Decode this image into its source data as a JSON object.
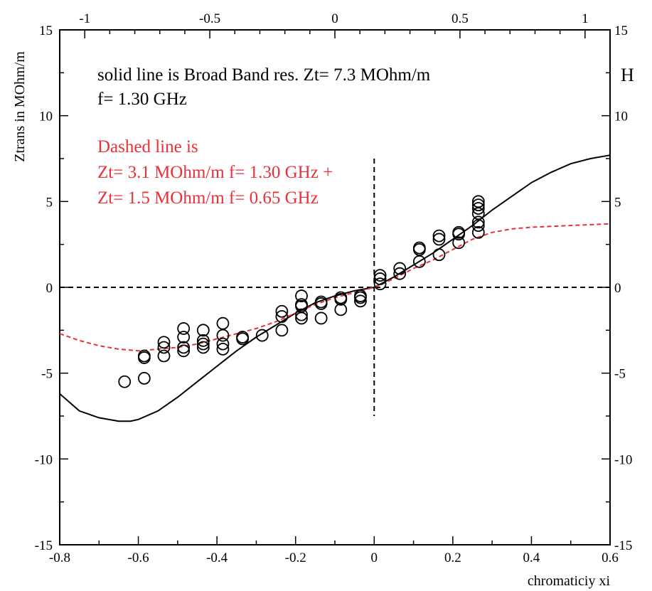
{
  "chart_data": {
    "type": "scatter",
    "title": "",
    "xlabel": "chromaticiy xi",
    "ylabel": "Ztrans in MOhm/m",
    "right_axis_label": "H",
    "xlim": [
      -0.8,
      0.6
    ],
    "ylim": [
      -15,
      15
    ],
    "top_xlim": [
      -1.1,
      1.1
    ],
    "x_ticks": [
      "-0.8",
      "-0.6",
      "-0.4",
      "-0.2",
      "0",
      "0.2",
      "0.4",
      "0.6"
    ],
    "top_x_ticks": [
      "-1",
      "-0.5",
      "0",
      "0.5",
      "1"
    ],
    "y_ticks": [
      "-15",
      "-10",
      "-5",
      "0",
      "5",
      "10",
      "15"
    ],
    "annotations": {
      "solid_line": "solid line is Broad Band res. Zt=   7.3 MOhm/m",
      "freq": "f= 1.30 GHz",
      "dashed_title": "Dashed line is",
      "dashed_line1": "Zt=   3.1 MOhm/m f= 1.30 GHz +",
      "dashed_line2": "Zt=   1.5 MOhm/m f= 0.65 GHz"
    },
    "colors": {
      "solid": "#000000",
      "dashed": "#e8323a",
      "markers": "#000000"
    },
    "grid": false,
    "series": [
      {
        "style": "solid",
        "x": [
          -0.8,
          -0.75,
          -0.7,
          -0.65,
          -0.62,
          -0.6,
          -0.55,
          -0.5,
          -0.45,
          -0.4,
          -0.35,
          -0.3,
          -0.25,
          -0.2,
          -0.15,
          -0.1,
          -0.05,
          0.0,
          0.05,
          0.1,
          0.15,
          0.2,
          0.25,
          0.3,
          0.35,
          0.4,
          0.45,
          0.5,
          0.55,
          0.6
        ],
        "y": [
          -6.2,
          -7.2,
          -7.6,
          -7.8,
          -7.8,
          -7.7,
          -7.2,
          -6.4,
          -5.5,
          -4.6,
          -3.7,
          -2.9,
          -2.2,
          -1.5,
          -0.9,
          -0.5,
          -0.2,
          0.0,
          0.6,
          1.3,
          2.0,
          2.8,
          3.6,
          4.5,
          5.3,
          6.1,
          6.7,
          7.2,
          7.5,
          7.7
        ]
      },
      {
        "style": "dashed",
        "x": [
          -0.8,
          -0.75,
          -0.7,
          -0.65,
          -0.6,
          -0.55,
          -0.5,
          -0.45,
          -0.4,
          -0.35,
          -0.3,
          -0.25,
          -0.2,
          -0.15,
          -0.1,
          -0.05,
          0.0,
          0.05,
          0.1,
          0.15,
          0.2,
          0.25,
          0.3,
          0.35,
          0.4,
          0.45,
          0.5,
          0.55,
          0.6
        ],
        "y": [
          -2.7,
          -3.1,
          -3.4,
          -3.6,
          -3.7,
          -3.6,
          -3.5,
          -3.3,
          -3.0,
          -2.7,
          -2.4,
          -2.0,
          -1.5,
          -1.0,
          -0.6,
          -0.3,
          0.0,
          0.5,
          1.1,
          1.6,
          2.2,
          2.8,
          3.2,
          3.4,
          3.5,
          3.55,
          3.6,
          3.65,
          3.7
        ]
      },
      {
        "style": "markers",
        "points": [
          [
            -0.635,
            -5.5
          ],
          [
            -0.585,
            -5.3
          ],
          [
            -0.585,
            -4.1
          ],
          [
            -0.585,
            -4.0
          ],
          [
            -0.535,
            -4.0
          ],
          [
            -0.535,
            -3.5
          ],
          [
            -0.535,
            -3.2
          ],
          [
            -0.485,
            -3.7
          ],
          [
            -0.485,
            -3.5
          ],
          [
            -0.485,
            -2.9
          ],
          [
            -0.485,
            -2.4
          ],
          [
            -0.435,
            -3.5
          ],
          [
            -0.435,
            -3.3
          ],
          [
            -0.435,
            -3.1
          ],
          [
            -0.435,
            -2.5
          ],
          [
            -0.385,
            -3.6
          ],
          [
            -0.385,
            -3.3
          ],
          [
            -0.385,
            -2.8
          ],
          [
            -0.385,
            -2.1
          ],
          [
            -0.335,
            -3.0
          ],
          [
            -0.335,
            -2.9
          ],
          [
            -0.285,
            -2.8
          ],
          [
            -0.235,
            -2.5
          ],
          [
            -0.235,
            -1.7
          ],
          [
            -0.235,
            -1.4
          ],
          [
            -0.185,
            -1.8
          ],
          [
            -0.185,
            -1.6
          ],
          [
            -0.185,
            -1.1
          ],
          [
            -0.185,
            -1.0
          ],
          [
            -0.185,
            -0.5
          ],
          [
            -0.135,
            -1.8
          ],
          [
            -0.135,
            -0.95
          ],
          [
            -0.135,
            -0.85
          ],
          [
            -0.085,
            -1.3
          ],
          [
            -0.085,
            -0.7
          ],
          [
            -0.085,
            -0.6
          ],
          [
            -0.035,
            -0.8
          ],
          [
            -0.035,
            -0.6
          ],
          [
            -0.035,
            -0.5
          ],
          [
            0.015,
            0.2
          ],
          [
            0.015,
            0.5
          ],
          [
            0.015,
            0.7
          ],
          [
            0.065,
            0.8
          ],
          [
            0.065,
            1.1
          ],
          [
            0.115,
            1.5
          ],
          [
            0.115,
            2.2
          ],
          [
            0.115,
            2.3
          ],
          [
            0.165,
            1.9
          ],
          [
            0.165,
            2.8
          ],
          [
            0.165,
            3.0
          ],
          [
            0.215,
            2.6
          ],
          [
            0.215,
            3.1
          ],
          [
            0.215,
            3.2
          ],
          [
            0.265,
            3.2
          ],
          [
            0.265,
            3.6
          ],
          [
            0.265,
            3.8
          ],
          [
            0.265,
            4.3
          ],
          [
            0.265,
            4.6
          ],
          [
            0.265,
            4.8
          ],
          [
            0.265,
            5.0
          ]
        ]
      }
    ]
  }
}
